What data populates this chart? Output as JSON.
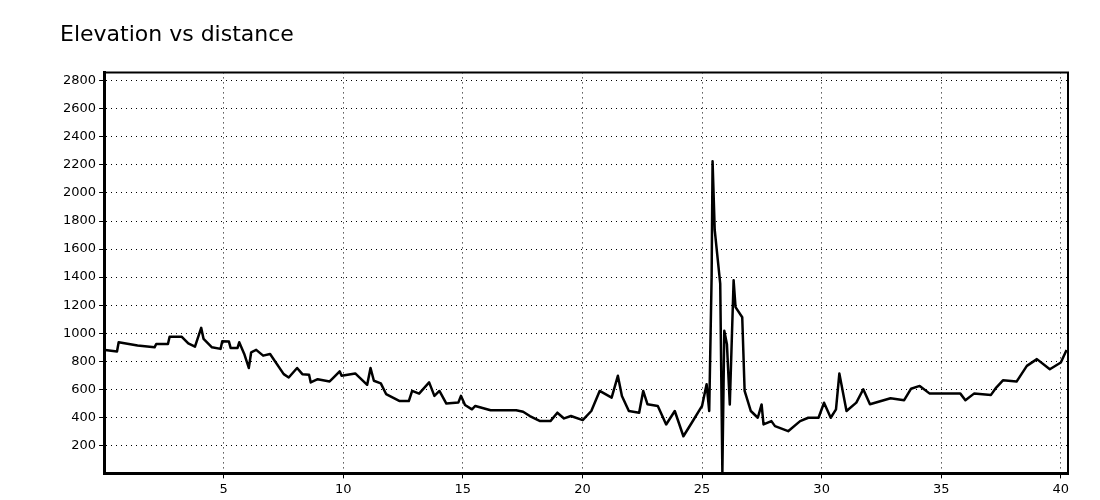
{
  "chart_data": {
    "type": "line",
    "title": "Elevation vs distance",
    "color": "#000000",
    "grid": true,
    "x": [
      0.04,
      0.54,
      0.61,
      1.4,
      2.11,
      2.18,
      2.67,
      2.74,
      3.24,
      3.52,
      3.8,
      4.06,
      4.16,
      4.51,
      4.87,
      4.94,
      5.22,
      5.29,
      5.58,
      5.65,
      5.86,
      6.05,
      6.15,
      6.36,
      6.65,
      6.94,
      7.51,
      7.72,
      8.07,
      8.29,
      8.57,
      8.64,
      8.93,
      9.43,
      9.57,
      9.85,
      9.93,
      10.5,
      11.0,
      11.14,
      11.28,
      11.57,
      11.79,
      12.36,
      12.74,
      12.88,
      13.17,
      13.59,
      13.81,
      14.02,
      14.31,
      14.81,
      14.92,
      15.09,
      15.38,
      15.52,
      16.16,
      17.23,
      17.52,
      17.8,
      18.23,
      18.66,
      18.95,
      19.23,
      19.52,
      20.01,
      20.37,
      20.72,
      21.22,
      21.48,
      21.65,
      21.94,
      22.37,
      22.54,
      22.72,
      23.15,
      23.5,
      23.86,
      24.22,
      24.57,
      25.0,
      25.19,
      25.3,
      25.4,
      25.44,
      25.53,
      25.76,
      25.85,
      25.93,
      26.04,
      26.16,
      26.32,
      26.4,
      26.68,
      26.78,
      27.04,
      27.33,
      27.49,
      27.57,
      27.9,
      28.05,
      28.6,
      29.1,
      29.44,
      29.87,
      30.1,
      30.38,
      30.6,
      30.74,
      31.04,
      31.45,
      31.74,
      32.02,
      32.88,
      33.45,
      33.74,
      34.1,
      34.52,
      35.8,
      36.01,
      36.37,
      37.08,
      37.3,
      37.58,
      38.15,
      38.58,
      39.0,
      39.54,
      40.0,
      40.24
    ],
    "values": [
      880,
      870,
      935,
      912,
      899,
      923,
      923,
      975,
      975,
      927,
      904,
      1038,
      959,
      899,
      888,
      943,
      940,
      895,
      895,
      935,
      852,
      752,
      864,
      881,
      840,
      852,
      708,
      684,
      752,
      708,
      704,
      649,
      672,
      656,
      680,
      728,
      696,
      713,
      632,
      752,
      661,
      642,
      566,
      516,
      516,
      588,
      569,
      649,
      553,
      588,
      498,
      505,
      553,
      488,
      457,
      481,
      450,
      450,
      440,
      409,
      373,
      373,
      433,
      392,
      409,
      380,
      445,
      588,
      540,
      696,
      552,
      445,
      433,
      588,
      493,
      481,
      349,
      445,
      265,
      361,
      481,
      636,
      445,
      1401,
      2226,
      1736,
      1353,
      10,
      1018,
      922,
      492,
      1377,
      1186,
      1114,
      588,
      445,
      397,
      492,
      349,
      373,
      337,
      301,
      373,
      397,
      397,
      504,
      397,
      457,
      712,
      445,
      505,
      600,
      493,
      536,
      522,
      604,
      624,
      569,
      569,
      522,
      569,
      560,
      612,
      664,
      655,
      767,
      815,
      743,
      791,
      880
    ],
    "xlim": [
      0,
      40.3
    ],
    "ylim": [
      0,
      2860
    ],
    "xticks": [
      5,
      10,
      15,
      20,
      25,
      30,
      35,
      40
    ],
    "yticks": [
      200,
      400,
      600,
      800,
      1000,
      1200,
      1400,
      1600,
      1800,
      2000,
      2200,
      2400,
      2600,
      2800
    ]
  }
}
